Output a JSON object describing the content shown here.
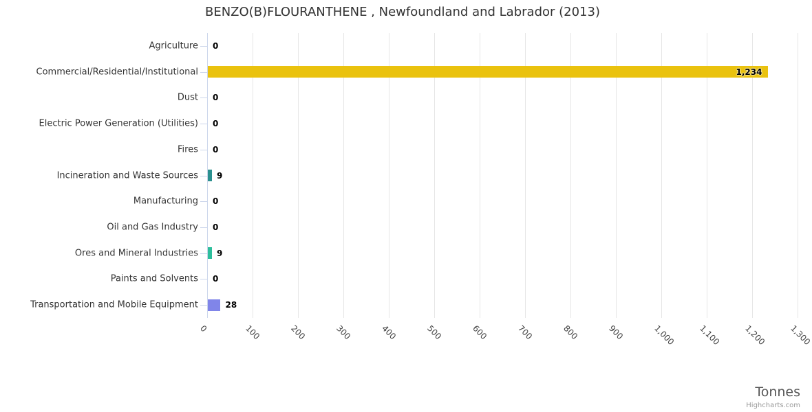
{
  "chart": {
    "title": "BENZO(B)FLOURANTHENE , Newfoundland and Labrador (2013)",
    "axis_title": "Tonnes",
    "credits": "Highcharts.com"
  },
  "chart_data": {
    "type": "bar",
    "orientation": "horizontal",
    "title": "BENZO(B)FLOURANTHENE , Newfoundland and Labrador (2013)",
    "categories": [
      "Agriculture",
      "Commercial/Residential/Institutional",
      "Dust",
      "Electric Power Generation (Utilities)",
      "Fires",
      "Incineration and Waste Sources",
      "Manufacturing",
      "Oil and Gas Industry",
      "Ores and Mineral Industries",
      "Paints and Solvents",
      "Transportation and Mobile Equipment"
    ],
    "values": [
      0,
      1234,
      0,
      0,
      0,
      9,
      0,
      0,
      9,
      0,
      28
    ],
    "data_labels": [
      "0",
      "1,234",
      "0",
      "0",
      "0",
      "9",
      "0",
      "0",
      "9",
      "0",
      "28"
    ],
    "bar_colors": [
      null,
      "#eac20e",
      null,
      null,
      null,
      "#2b908f",
      null,
      null,
      "#2dbe9c",
      null,
      "#8085e9"
    ],
    "xlabel": "Tonnes",
    "ylabel": "",
    "xlim": [
      0,
      1300
    ],
    "x_tick_interval": 100,
    "x_ticks": [
      "0",
      "100",
      "200",
      "300",
      "400",
      "500",
      "600",
      "700",
      "800",
      "900",
      "1,000",
      "1,100",
      "1,200",
      "1,300"
    ],
    "grid": true,
    "legend": "none",
    "colors": {
      "grid_line": "#e6e6e6",
      "axis_line": "#ccd6eb",
      "title_text": "#333333",
      "category_text": "#333333",
      "value_text": "#000000",
      "axis_title_text": "#555555",
      "credits_text": "#999999"
    }
  }
}
